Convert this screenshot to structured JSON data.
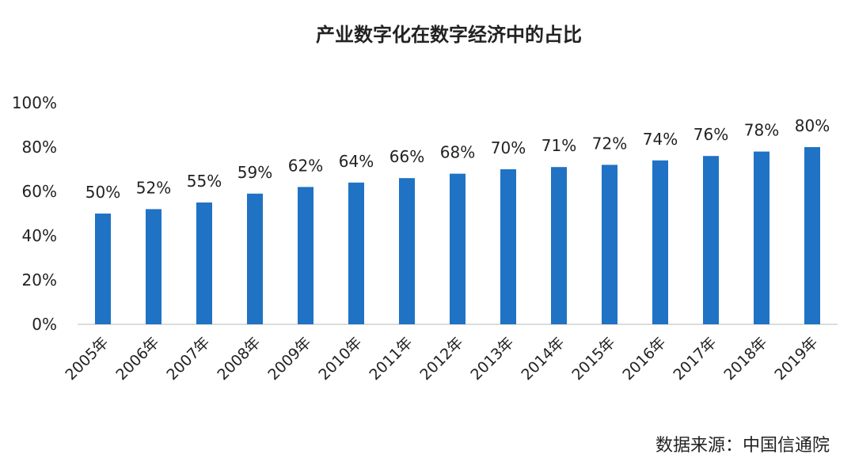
{
  "chart_data": {
    "type": "bar",
    "title": "产业数字化在数字经济中的占比",
    "xlabel": "",
    "ylabel": "",
    "categories": [
      "2005年",
      "2006年",
      "2007年",
      "2008年",
      "2009年",
      "2010年",
      "2011年",
      "2012年",
      "2013年",
      "2014年",
      "2015年",
      "2016年",
      "2017年",
      "2018年",
      "2019年"
    ],
    "values": [
      50,
      52,
      55,
      59,
      62,
      64,
      66,
      68,
      70,
      71,
      72,
      74,
      76,
      78,
      80
    ],
    "data_labels": [
      "50%",
      "52%",
      "55%",
      "59%",
      "62%",
      "64%",
      "66%",
      "68%",
      "70%",
      "71%",
      "72%",
      "74%",
      "76%",
      "78%",
      "80%"
    ],
    "ylim": [
      0,
      100
    ],
    "yticks": [
      0,
      20,
      40,
      60,
      80,
      100
    ],
    "ytick_labels": [
      "0%",
      "20%",
      "40%",
      "60%",
      "80%",
      "100%"
    ],
    "bar_color": "#1f72c4",
    "grid": false,
    "legend": "none"
  },
  "source": "数据来源：中国信通院"
}
